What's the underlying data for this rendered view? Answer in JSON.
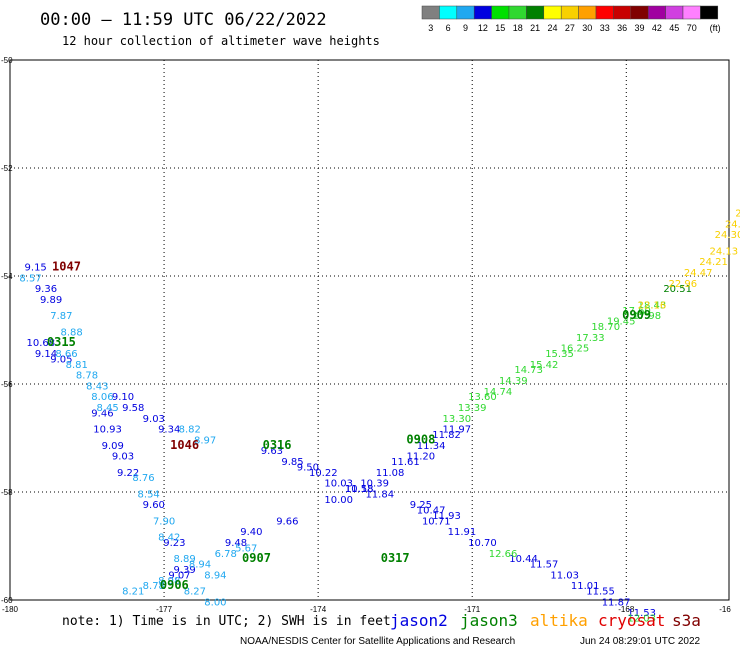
{
  "header": {
    "title": "00:00 — 11:59 UTC 06/22/2022",
    "subtitle": "12 hour collection of altimeter wave heights"
  },
  "legend_scale": {
    "colors": [
      "#808080",
      "#00ffff",
      "#20a8f0",
      "#0000e0",
      "#00e000",
      "#30d830",
      "#008000",
      "#ffff00",
      "#f8d000",
      "#ffa000",
      "#ff0000",
      "#c80000",
      "#800000",
      "#a000a0",
      "#d040e0",
      "#ff80ff",
      "#000000"
    ],
    "labels": [
      "3",
      "6",
      "9",
      "12",
      "15",
      "18",
      "21",
      "24",
      "27",
      "30",
      "33",
      "36",
      "39",
      "42",
      "45",
      "70",
      "(ft)"
    ]
  },
  "footer": {
    "note": "note: 1) Time is in UTC; 2) SWH is in feet",
    "satellites": [
      {
        "name": "jason2",
        "color": "#0000e0"
      },
      {
        "name": "jason3",
        "color": "#008000"
      },
      {
        "name": "altika",
        "color": "#ffa000"
      },
      {
        "name": "cryosat",
        "color": "#e00000"
      },
      {
        "name": "s3a",
        "color": "#800000"
      }
    ],
    "credit": "NOAA/NESDIS Center for Satellite Applications and Research",
    "timestamp": "Jun 24 08:29:01 UTC 2022"
  },
  "chart_data": {
    "type": "scatter",
    "xlim": [
      -180,
      -166
    ],
    "ylim": [
      -60,
      -50
    ],
    "x_ticks": [
      "-180",
      "-177",
      "-174",
      "-171",
      "-168",
      "-16"
    ],
    "y_ticks": [
      "-50",
      "-52",
      "-54",
      "-56",
      "-58",
      "-60"
    ],
    "grid": true,
    "time_labels": [
      {
        "x": -178.9,
        "y": -53.9,
        "text": "1047",
        "color": "#800000"
      },
      {
        "x": -179.0,
        "y": -55.3,
        "text": "0315",
        "color": "#008000"
      },
      {
        "x": -176.6,
        "y": -57.2,
        "text": "1046",
        "color": "#800000"
      },
      {
        "x": -174.8,
        "y": -57.2,
        "text": "0316",
        "color": "#008000"
      },
      {
        "x": -172.0,
        "y": -57.1,
        "text": "0908",
        "color": "#008000"
      },
      {
        "x": -167.8,
        "y": -54.8,
        "text": "0909",
        "color": "#008000"
      },
      {
        "x": -175.2,
        "y": -59.3,
        "text": "0907",
        "color": "#008000"
      },
      {
        "x": -176.8,
        "y": -59.8,
        "text": "0906",
        "color": "#008000"
      },
      {
        "x": -172.5,
        "y": -59.3,
        "text": "0317",
        "color": "#008000"
      }
    ],
    "series": [
      {
        "color": "#0000e0",
        "points": [
          {
            "x": -179.5,
            "y": -53.9,
            "v": "9.15"
          },
          {
            "x": -179.3,
            "y": -54.3,
            "v": "9.36"
          },
          {
            "x": -179.2,
            "y": -54.5,
            "v": "9.89"
          },
          {
            "x": -179.4,
            "y": -55.3,
            "v": "10.68"
          },
          {
            "x": -179.3,
            "y": -55.5,
            "v": "9.14"
          },
          {
            "x": -179.0,
            "y": -55.6,
            "v": "9.05"
          },
          {
            "x": -177.8,
            "y": -56.3,
            "v": "9.10"
          },
          {
            "x": -177.6,
            "y": -56.5,
            "v": "9.58"
          },
          {
            "x": -178.2,
            "y": -56.6,
            "v": "9.46"
          },
          {
            "x": -177.2,
            "y": -56.7,
            "v": "9.03"
          },
          {
            "x": -178.1,
            "y": -56.9,
            "v": "10.93"
          },
          {
            "x": -176.9,
            "y": -56.9,
            "v": "9.34"
          },
          {
            "x": -178.0,
            "y": -57.2,
            "v": "9.09"
          },
          {
            "x": -177.8,
            "y": -57.4,
            "v": "9.03"
          },
          {
            "x": -177.7,
            "y": -57.7,
            "v": "9.22"
          },
          {
            "x": -177.2,
            "y": -58.3,
            "v": "9.60"
          },
          {
            "x": -176.8,
            "y": -59.0,
            "v": "9.23"
          },
          {
            "x": -176.7,
            "y": -59.6,
            "v": "9.07"
          },
          {
            "x": -176.6,
            "y": -59.5,
            "v": "9.39"
          },
          {
            "x": -174.9,
            "y": -57.3,
            "v": "9.63"
          },
          {
            "x": -174.5,
            "y": -57.5,
            "v": "9.85"
          },
          {
            "x": -174.2,
            "y": -57.6,
            "v": "9.50"
          },
          {
            "x": -173.9,
            "y": -57.7,
            "v": "10.22"
          },
          {
            "x": -173.6,
            "y": -57.9,
            "v": "10.03"
          },
          {
            "x": -173.2,
            "y": -58.0,
            "v": "10.18"
          },
          {
            "x": -172.8,
            "y": -58.1,
            "v": "11.84"
          },
          {
            "x": -172.0,
            "y": -58.3,
            "v": "9.25"
          },
          {
            "x": -171.8,
            "y": -58.4,
            "v": "10.47"
          },
          {
            "x": -171.5,
            "y": -58.5,
            "v": "11.93"
          },
          {
            "x": -171.7,
            "y": -58.6,
            "v": "10.71"
          },
          {
            "x": -171.2,
            "y": -58.8,
            "v": "11.91"
          },
          {
            "x": -170.8,
            "y": -59.0,
            "v": "10.70"
          },
          {
            "x": -170.0,
            "y": -59.3,
            "v": "10.44"
          },
          {
            "x": -169.6,
            "y": -59.4,
            "v": "11.57"
          },
          {
            "x": -169.2,
            "y": -59.6,
            "v": "11.03"
          },
          {
            "x": -168.8,
            "y": -59.8,
            "v": "11.01"
          },
          {
            "x": -168.5,
            "y": -59.9,
            "v": "11.55"
          },
          {
            "x": -168.2,
            "y": -60.1,
            "v": "11.87"
          },
          {
            "x": -167.7,
            "y": -60.3,
            "v": "11.53"
          },
          {
            "x": -175.3,
            "y": -58.8,
            "v": "9.40"
          },
          {
            "x": -175.6,
            "y": -59.0,
            "v": "9.48"
          },
          {
            "x": -174.6,
            "y": -58.6,
            "v": "9.66"
          },
          {
            "x": -173.6,
            "y": -58.2,
            "v": "10.00"
          },
          {
            "x": -173.2,
            "y": -58.0,
            "v": "11.58"
          },
          {
            "x": -172.9,
            "y": -57.9,
            "v": "10.39"
          },
          {
            "x": -172.6,
            "y": -57.7,
            "v": "11.08"
          },
          {
            "x": -172.3,
            "y": -57.5,
            "v": "11.61"
          },
          {
            "x": -172.0,
            "y": -57.4,
            "v": "11.20"
          },
          {
            "x": -171.8,
            "y": -57.2,
            "v": "11.34"
          },
          {
            "x": -171.5,
            "y": -57.0,
            "v": "11.82"
          },
          {
            "x": -171.3,
            "y": -56.9,
            "v": "11.97"
          }
        ]
      },
      {
        "color": "#20a8f0",
        "points": [
          {
            "x": -179.6,
            "y": -54.1,
            "v": "8.57"
          },
          {
            "x": -179.0,
            "y": -54.8,
            "v": "7.87"
          },
          {
            "x": -178.8,
            "y": -55.1,
            "v": "8.88"
          },
          {
            "x": -178.9,
            "y": -55.5,
            "v": "8.66"
          },
          {
            "x": -178.7,
            "y": -55.7,
            "v": "8.81"
          },
          {
            "x": -178.5,
            "y": -55.9,
            "v": "8.78"
          },
          {
            "x": -178.3,
            "y": -56.1,
            "v": "8.43"
          },
          {
            "x": -178.2,
            "y": -56.3,
            "v": "8.06"
          },
          {
            "x": -178.1,
            "y": -56.5,
            "v": "8.45"
          },
          {
            "x": -176.5,
            "y": -56.9,
            "v": "8.82"
          },
          {
            "x": -176.2,
            "y": -57.1,
            "v": "8.97"
          },
          {
            "x": -177.4,
            "y": -57.8,
            "v": "8.76"
          },
          {
            "x": -177.3,
            "y": -58.1,
            "v": "8.54"
          },
          {
            "x": -177.0,
            "y": -58.6,
            "v": "7.90"
          },
          {
            "x": -176.9,
            "y": -58.9,
            "v": "8.42"
          },
          {
            "x": -176.6,
            "y": -59.3,
            "v": "8.89"
          },
          {
            "x": -176.3,
            "y": -59.4,
            "v": "8.94"
          },
          {
            "x": -177.6,
            "y": -59.9,
            "v": "8.21"
          },
          {
            "x": -177.2,
            "y": -59.8,
            "v": "8.78"
          },
          {
            "x": -176.9,
            "y": -59.7,
            "v": "8.98"
          },
          {
            "x": -176.4,
            "y": -59.9,
            "v": "8.27"
          },
          {
            "x": -176.0,
            "y": -60.1,
            "v": "8.00"
          },
          {
            "x": -176.0,
            "y": -59.6,
            "v": "8.94"
          },
          {
            "x": -175.8,
            "y": -59.2,
            "v": "6.78"
          },
          {
            "x": -175.4,
            "y": -59.1,
            "v": "5.67"
          }
        ]
      },
      {
        "color": "#30d830",
        "points": [
          {
            "x": -170.4,
            "y": -59.2,
            "v": "12.66"
          },
          {
            "x": -167.7,
            "y": -60.4,
            "v": "12.03"
          },
          {
            "x": -171.3,
            "y": -56.7,
            "v": "13.30"
          },
          {
            "x": -171.0,
            "y": -56.5,
            "v": "13.39"
          },
          {
            "x": -170.8,
            "y": -56.3,
            "v": "13.60"
          },
          {
            "x": -170.5,
            "y": -56.2,
            "v": "14.74"
          },
          {
            "x": -170.2,
            "y": -56.0,
            "v": "14.39"
          },
          {
            "x": -169.9,
            "y": -55.8,
            "v": "14.73"
          },
          {
            "x": -169.6,
            "y": -55.7,
            "v": "15.42"
          },
          {
            "x": -169.3,
            "y": -55.5,
            "v": "15.35"
          },
          {
            "x": -169.0,
            "y": -55.4,
            "v": "16.25"
          },
          {
            "x": -168.7,
            "y": -55.2,
            "v": "17.33"
          },
          {
            "x": -168.4,
            "y": -55.0,
            "v": "18.70"
          },
          {
            "x": -168.1,
            "y": -54.9,
            "v": "19.45"
          },
          {
            "x": -167.8,
            "y": -54.7,
            "v": "17.60"
          },
          {
            "x": -167.5,
            "y": -54.6,
            "v": "18.43"
          },
          {
            "x": -167.6,
            "y": -54.8,
            "v": "17.98"
          }
        ]
      },
      {
        "color": "#008000",
        "points": [
          {
            "x": -167.0,
            "y": -54.3,
            "v": "20.51"
          }
        ]
      },
      {
        "color": "#f8d000",
        "points": [
          {
            "x": -167.5,
            "y": -54.6,
            "v": "22.16"
          },
          {
            "x": -166.9,
            "y": -54.2,
            "v": "22.96"
          },
          {
            "x": -166.6,
            "y": -54.0,
            "v": "24.47"
          },
          {
            "x": -166.3,
            "y": -53.8,
            "v": "24.21"
          },
          {
            "x": -166.1,
            "y": -53.6,
            "v": "24.13"
          },
          {
            "x": -166.0,
            "y": -53.3,
            "v": "24.30"
          },
          {
            "x": -165.8,
            "y": -53.1,
            "v": "24.81"
          },
          {
            "x": -165.6,
            "y": -52.9,
            "v": "25.29"
          }
        ]
      }
    ]
  }
}
